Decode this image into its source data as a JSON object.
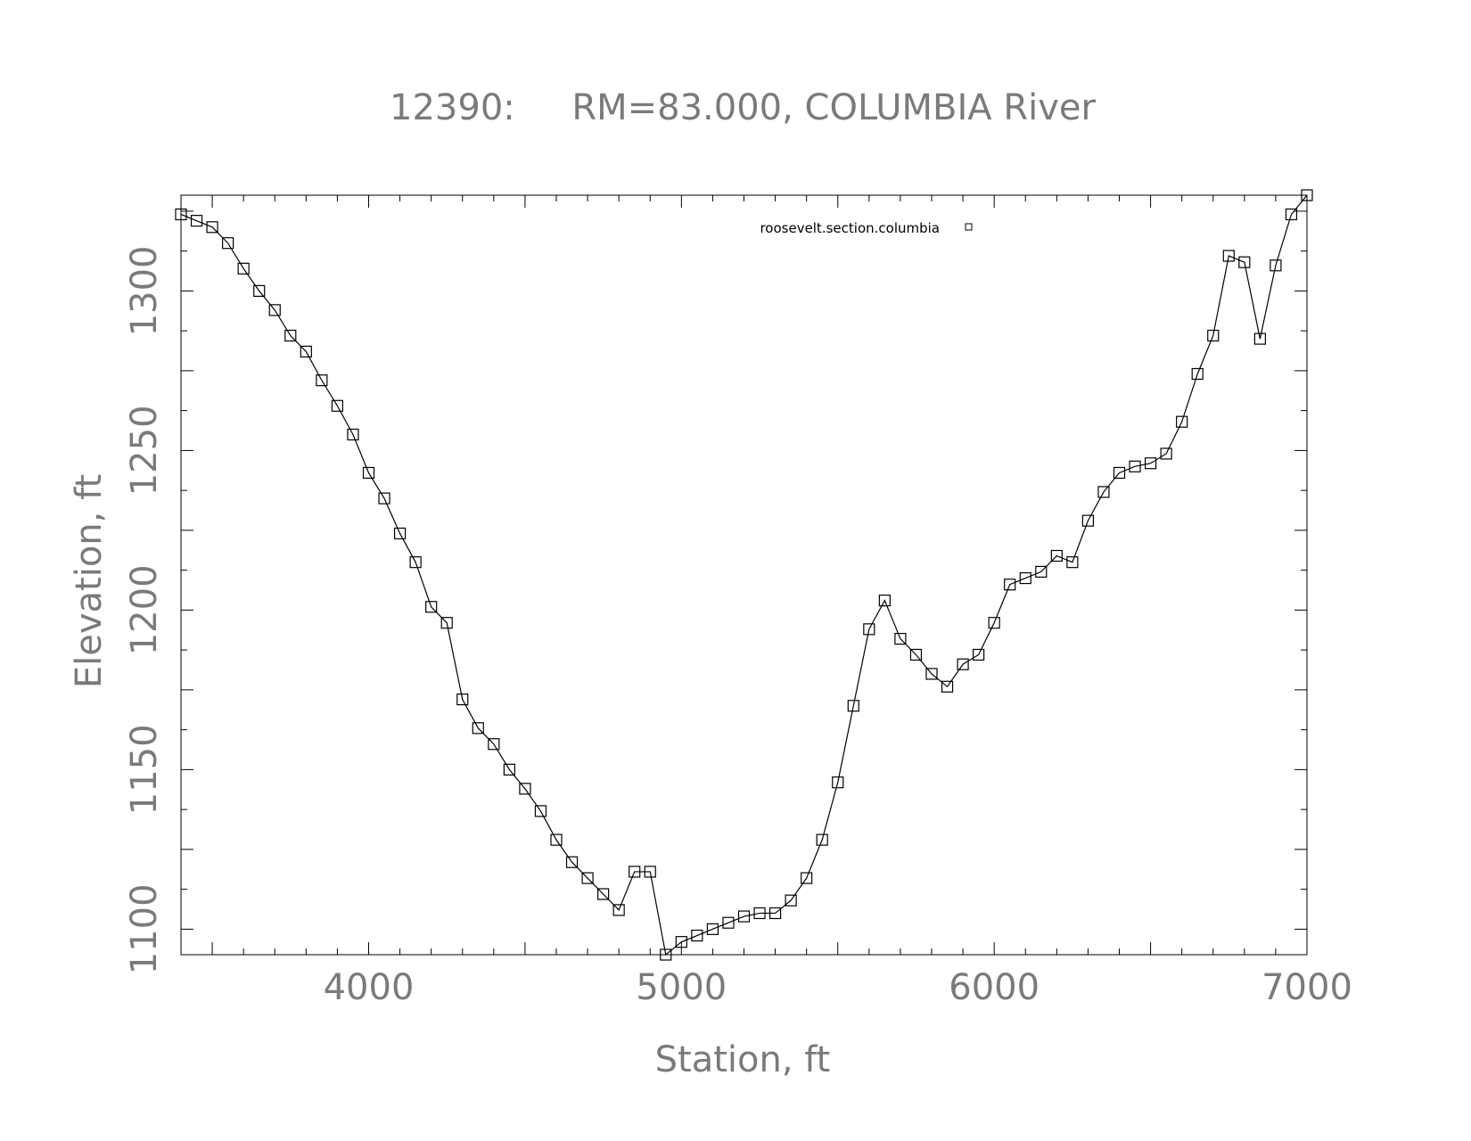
{
  "chart_data": {
    "type": "line",
    "title": "12390:     RM=83.000, COLUMBIA River",
    "xlabel": "Station, ft",
    "ylabel": "Elevation, ft",
    "xlim": [
      3400,
      7000
    ],
    "ylim": [
      1092,
      1330
    ],
    "xticks": [
      4000,
      5000,
      6000,
      7000
    ],
    "yticks": [
      1100,
      1150,
      1200,
      1250,
      1300
    ],
    "grid": false,
    "legend_position": "top-right (inside)",
    "marker": "square",
    "line_color": "#000000",
    "text_color": "#7a7a7a",
    "series": [
      {
        "name": "roosevelt.section.columbia",
        "x": [
          3400,
          3450,
          3500,
          3550,
          3600,
          3650,
          3700,
          3750,
          3800,
          3850,
          3900,
          3950,
          4000,
          4050,
          4100,
          4150,
          4200,
          4250,
          4300,
          4350,
          4400,
          4450,
          4500,
          4550,
          4600,
          4650,
          4700,
          4750,
          4800,
          4850,
          4900,
          4950,
          5000,
          5050,
          5100,
          5150,
          5200,
          5250,
          5300,
          5350,
          5400,
          5450,
          5500,
          5550,
          5600,
          5650,
          5700,
          5750,
          5800,
          5850,
          5900,
          5950,
          6000,
          6050,
          6100,
          6150,
          6200,
          6250,
          6300,
          6350,
          6400,
          6450,
          6500,
          6550,
          6600,
          6650,
          6700,
          6750,
          6800,
          6850,
          6900,
          6950,
          7000
        ],
        "y": [
          1324,
          1322,
          1320,
          1315,
          1307,
          1300,
          1294,
          1286,
          1281,
          1272,
          1264,
          1255,
          1243,
          1235,
          1224,
          1215,
          1201,
          1196,
          1172,
          1163,
          1158,
          1150,
          1144,
          1137,
          1128,
          1121,
          1116,
          1111,
          1106,
          1118,
          1118,
          1092,
          1096,
          1098,
          1100,
          1102,
          1104,
          1105,
          1105,
          1109,
          1116,
          1128,
          1146,
          1170,
          1194,
          1203,
          1191,
          1186,
          1180,
          1176,
          1183,
          1186,
          1196,
          1208,
          1210,
          1212,
          1217,
          1215,
          1228,
          1237,
          1243,
          1245,
          1246,
          1249,
          1259,
          1274,
          1286,
          1311,
          1309,
          1285,
          1308,
          1324,
          1330
        ]
      }
    ]
  }
}
